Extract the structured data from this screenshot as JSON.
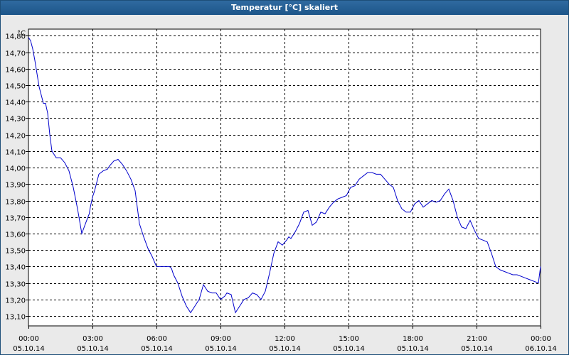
{
  "window": {
    "title": "Temperatur [°C] skaliert"
  },
  "chart_data": {
    "type": "line",
    "title": "Temperatur [°C] skaliert",
    "ylabel": "°C",
    "xlabel": "",
    "ylim": [
      13.04,
      14.84
    ],
    "xlim": [
      0,
      24
    ],
    "grid": true,
    "legend": "none",
    "line_color": "#0000cc",
    "yticks": [
      "13,10",
      "13,20",
      "13,30",
      "13,40",
      "13,50",
      "13,60",
      "13,70",
      "13,80",
      "13,90",
      "14,00",
      "14,10",
      "14,20",
      "14,30",
      "14,40",
      "14,50",
      "14,60",
      "14,70",
      "14,80"
    ],
    "ytick_values": [
      13.1,
      13.2,
      13.3,
      13.4,
      13.5,
      13.6,
      13.7,
      13.8,
      13.9,
      14.0,
      14.1,
      14.2,
      14.3,
      14.4,
      14.5,
      14.6,
      14.7,
      14.8
    ],
    "xticks": [
      {
        "time": "00:00",
        "date": "05.10.14"
      },
      {
        "time": "03:00",
        "date": "05.10.14"
      },
      {
        "time": "06:00",
        "date": "05.10.14"
      },
      {
        "time": "09:00",
        "date": "05.10.14"
      },
      {
        "time": "12:00",
        "date": "05.10.14"
      },
      {
        "time": "15:00",
        "date": "05.10.14"
      },
      {
        "time": "18:00",
        "date": "05.10.14"
      },
      {
        "time": "21:00",
        "date": "05.10.14"
      },
      {
        "time": "00:00",
        "date": "06.10.14"
      }
    ],
    "series": [
      {
        "x": [
          0.0,
          0.1,
          0.2,
          0.3,
          0.4,
          0.5,
          0.6,
          0.7,
          0.8,
          0.9,
          1.0,
          1.1,
          1.3,
          1.5,
          1.7,
          1.9,
          2.1,
          2.3,
          2.5,
          2.7,
          2.85,
          2.9,
          3.0,
          3.1,
          3.3,
          3.5,
          3.7,
          3.8,
          4.0,
          4.2,
          4.4,
          4.6,
          4.8,
          5.0,
          5.2,
          5.4,
          5.6,
          5.8,
          6.0,
          6.2,
          6.4,
          6.6,
          6.7,
          6.8,
          7.0,
          7.2,
          7.4,
          7.6,
          7.8,
          8.0,
          8.2,
          8.4,
          8.6,
          8.8,
          9.0,
          9.2,
          9.3,
          9.5,
          9.7,
          9.9,
          10.1,
          10.3,
          10.5,
          10.7,
          10.9,
          11.1,
          11.3,
          11.5,
          11.7,
          11.9,
          12.1,
          12.2,
          12.3,
          12.5,
          12.7,
          12.9,
          13.1,
          13.3,
          13.5,
          13.7,
          13.9,
          14.1,
          14.3,
          14.5,
          14.7,
          14.9,
          15.1,
          15.3,
          15.5,
          15.7,
          15.9,
          16.1,
          16.3,
          16.5,
          16.7,
          16.9,
          17.1,
          17.3,
          17.5,
          17.7,
          17.9,
          18.1,
          18.3,
          18.5,
          18.7,
          18.9,
          19.1,
          19.3,
          19.5,
          19.7,
          19.9,
          20.1,
          20.3,
          20.5,
          20.7,
          20.9,
          21.1,
          21.3,
          21.5,
          21.7,
          21.9,
          22.1,
          22.3,
          22.5,
          22.7,
          22.9,
          23.1,
          23.3,
          23.5,
          23.7,
          23.9,
          24.0
        ],
        "y": [
          14.79,
          14.77,
          14.72,
          14.65,
          14.57,
          14.49,
          14.44,
          14.39,
          14.39,
          14.33,
          14.2,
          14.1,
          14.06,
          14.06,
          14.03,
          13.98,
          13.88,
          13.75,
          13.6,
          13.67,
          13.72,
          13.76,
          13.82,
          13.86,
          13.96,
          13.98,
          13.99,
          14.01,
          14.04,
          14.05,
          14.02,
          13.98,
          13.93,
          13.86,
          13.66,
          13.58,
          13.51,
          13.46,
          13.4,
          13.4,
          13.4,
          13.4,
          13.39,
          13.35,
          13.3,
          13.22,
          13.16,
          13.12,
          13.16,
          13.2,
          13.29,
          13.25,
          13.24,
          13.24,
          13.2,
          13.22,
          13.24,
          13.23,
          13.12,
          13.16,
          13.2,
          13.21,
          13.24,
          13.23,
          13.2,
          13.25,
          13.36,
          13.48,
          13.55,
          13.53,
          13.56,
          13.58,
          13.57,
          13.61,
          13.66,
          13.73,
          13.74,
          13.65,
          13.67,
          13.73,
          13.72,
          13.76,
          13.79,
          13.81,
          13.82,
          13.83,
          13.88,
          13.89,
          13.93,
          13.95,
          13.97,
          13.97,
          13.96,
          13.96,
          13.93,
          13.9,
          13.88,
          13.8,
          13.75,
          13.73,
          13.73,
          13.78,
          13.8,
          13.76,
          13.78,
          13.8,
          13.79,
          13.8,
          13.84,
          13.87,
          13.8,
          13.7,
          13.64,
          13.63,
          13.68,
          13.62,
          13.57,
          13.56,
          13.55,
          13.48,
          13.4,
          13.38,
          13.37,
          13.36,
          13.35,
          13.35,
          13.34,
          13.33,
          13.32,
          13.31,
          13.3,
          13.4
        ]
      }
    ]
  }
}
